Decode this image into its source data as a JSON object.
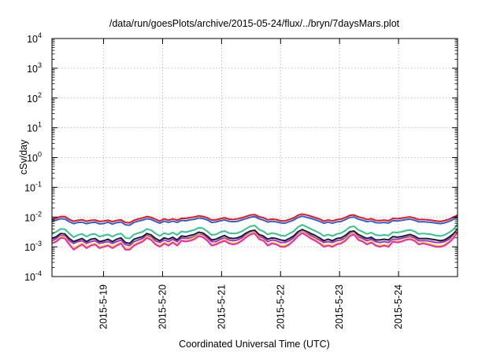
{
  "chart_data": {
    "type": "line",
    "title": "/data/run/goesPlots/archive/2015-05-24/flux/../bryn/7daysMars.plot",
    "xlabel": "Coordinated Universal Time (UTC)",
    "ylabel": "cSv/day",
    "yscale": "log",
    "ylim": [
      0.0001,
      10000
    ],
    "yticks": [
      {
        "value": 0.0001,
        "base": "10",
        "exp": "-4"
      },
      {
        "value": 0.001,
        "base": "10",
        "exp": "-3"
      },
      {
        "value": 0.01,
        "base": "10",
        "exp": "-2"
      },
      {
        "value": 0.1,
        "base": "10",
        "exp": "-1"
      },
      {
        "value": 1,
        "base": "10",
        "exp": "0"
      },
      {
        "value": 10,
        "base": "10",
        "exp": "1"
      },
      {
        "value": 100,
        "base": "10",
        "exp": "2"
      },
      {
        "value": 1000,
        "base": "10",
        "exp": "3"
      },
      {
        "value": 10000,
        "base": "10",
        "exp": "4"
      }
    ],
    "xlim": [
      "2015-05-18 03:00",
      "2015-05-25 00:00"
    ],
    "xticks": [
      "2015-5-19",
      "2015-5-20",
      "2015-5-21",
      "2015-5-22",
      "2015-5-23",
      "2015-5-24"
    ],
    "grid": true,
    "legend": "none",
    "series": [
      {
        "color": "#e8141c",
        "values": [
          0.0085,
          0.0092,
          0.0104,
          0.0103,
          0.0083,
          0.0072,
          0.0078,
          0.0081,
          0.0072,
          0.0078,
          0.0079,
          0.0071,
          0.0074,
          0.0078,
          0.007,
          0.0077,
          0.008,
          0.0066,
          0.0064,
          0.0078,
          0.0086,
          0.0093,
          0.0104,
          0.0097,
          0.0084,
          0.0073,
          0.0087,
          0.0078,
          0.0087,
          0.0078,
          0.009,
          0.009,
          0.0096,
          0.01,
          0.011,
          0.0104,
          0.0094,
          0.0079,
          0.0081,
          0.0088,
          0.0094,
          0.0085,
          0.0083,
          0.0087,
          0.0094,
          0.0105,
          0.0117,
          0.012,
          0.0102,
          0.0095,
          0.0081,
          0.0085,
          0.0082,
          0.0075,
          0.0074,
          0.0083,
          0.0093,
          0.0115,
          0.0126,
          0.0117,
          0.0107,
          0.0095,
          0.0086,
          0.0073,
          0.008,
          0.0074,
          0.0082,
          0.0085,
          0.0097,
          0.0114,
          0.0117,
          0.0101,
          0.0093,
          0.0083,
          0.0088,
          0.0077,
          0.0076,
          0.0079,
          0.0075,
          0.009,
          0.0088,
          0.0091,
          0.0097,
          0.0101,
          0.0092,
          0.0082,
          0.0083,
          0.0081,
          0.0078,
          0.0074,
          0.0071,
          0.0076,
          0.0084,
          0.0098,
          0.0117
        ]
      },
      {
        "color": "#2a5fd8",
        "values": [
          0.0072,
          0.0079,
          0.0088,
          0.0086,
          0.007,
          0.006,
          0.0066,
          0.0067,
          0.006,
          0.0065,
          0.0067,
          0.0059,
          0.0061,
          0.0067,
          0.0058,
          0.0065,
          0.0068,
          0.0055,
          0.0053,
          0.0066,
          0.0073,
          0.0079,
          0.0088,
          0.0083,
          0.0071,
          0.0062,
          0.0073,
          0.0066,
          0.0073,
          0.0066,
          0.0077,
          0.0075,
          0.0081,
          0.0084,
          0.0093,
          0.0089,
          0.008,
          0.0066,
          0.0069,
          0.0075,
          0.008,
          0.0072,
          0.007,
          0.0072,
          0.008,
          0.0089,
          0.0099,
          0.0103,
          0.0087,
          0.0079,
          0.0068,
          0.0072,
          0.0069,
          0.0064,
          0.0062,
          0.007,
          0.0079,
          0.0097,
          0.0107,
          0.0098,
          0.009,
          0.0081,
          0.0072,
          0.0062,
          0.0068,
          0.0062,
          0.0069,
          0.0071,
          0.0082,
          0.0097,
          0.01,
          0.0085,
          0.0078,
          0.007,
          0.0074,
          0.0065,
          0.0064,
          0.0066,
          0.0063,
          0.0076,
          0.0074,
          0.0077,
          0.0082,
          0.0085,
          0.0078,
          0.0069,
          0.007,
          0.0068,
          0.0066,
          0.0063,
          0.006,
          0.0064,
          0.0071,
          0.0083,
          0.0104
        ]
      },
      {
        "color": "#35c48a",
        "values": [
          0.0027,
          0.0032,
          0.004,
          0.0039,
          0.0028,
          0.0021,
          0.0025,
          0.0027,
          0.0022,
          0.0026,
          0.0027,
          0.0022,
          0.0024,
          0.0026,
          0.0022,
          0.0026,
          0.0028,
          0.002,
          0.0019,
          0.0026,
          0.0029,
          0.0032,
          0.004,
          0.0036,
          0.0028,
          0.0023,
          0.0029,
          0.0026,
          0.003,
          0.0025,
          0.0033,
          0.0031,
          0.0034,
          0.0037,
          0.0044,
          0.0042,
          0.0033,
          0.0025,
          0.0026,
          0.0031,
          0.0034,
          0.0029,
          0.0028,
          0.0029,
          0.0033,
          0.0041,
          0.0049,
          0.0052,
          0.0038,
          0.0033,
          0.0026,
          0.0029,
          0.0027,
          0.0024,
          0.0023,
          0.0028,
          0.0033,
          0.0046,
          0.0055,
          0.0047,
          0.004,
          0.0034,
          0.0029,
          0.0023,
          0.0026,
          0.0023,
          0.0027,
          0.0029,
          0.0035,
          0.0046,
          0.0049,
          0.0037,
          0.0032,
          0.0027,
          0.003,
          0.0025,
          0.0024,
          0.0025,
          0.0024,
          0.0031,
          0.003,
          0.0032,
          0.0035,
          0.0037,
          0.0033,
          0.0027,
          0.0028,
          0.0027,
          0.0026,
          0.0024,
          0.0023,
          0.0025,
          0.003,
          0.0038,
          0.0056
        ]
      },
      {
        "color": "#1a1a2e",
        "values": [
          0.0019,
          0.0022,
          0.0028,
          0.0027,
          0.0019,
          0.0015,
          0.0017,
          0.0019,
          0.0015,
          0.0018,
          0.0019,
          0.0015,
          0.0016,
          0.0018,
          0.0015,
          0.0018,
          0.002,
          0.0014,
          0.0013,
          0.0018,
          0.002,
          0.0022,
          0.0028,
          0.0025,
          0.0019,
          0.0016,
          0.002,
          0.0018,
          0.0021,
          0.0017,
          0.0023,
          0.0022,
          0.0024,
          0.0026,
          0.0031,
          0.0029,
          0.0023,
          0.0017,
          0.0018,
          0.0021,
          0.0024,
          0.002,
          0.0019,
          0.002,
          0.0023,
          0.0029,
          0.0034,
          0.0036,
          0.0026,
          0.0023,
          0.0018,
          0.002,
          0.0019,
          0.0017,
          0.0016,
          0.0019,
          0.0023,
          0.0032,
          0.0038,
          0.0033,
          0.0028,
          0.0024,
          0.002,
          0.0016,
          0.0018,
          0.0016,
          0.0019,
          0.002,
          0.0024,
          0.0032,
          0.0034,
          0.0026,
          0.0022,
          0.0019,
          0.0021,
          0.0017,
          0.0017,
          0.0018,
          0.0017,
          0.0022,
          0.0021,
          0.0022,
          0.0024,
          0.0026,
          0.0023,
          0.0019,
          0.0019,
          0.0019,
          0.0018,
          0.0017,
          0.0016,
          0.0017,
          0.0021,
          0.0027,
          0.0039
        ]
      },
      {
        "color": "#9f2fd6",
        "values": [
          0.0016,
          0.0019,
          0.0024,
          0.0023,
          0.0016,
          0.0013,
          0.0015,
          0.0016,
          0.0013,
          0.0015,
          0.0016,
          0.0013,
          0.0014,
          0.0015,
          0.0013,
          0.0015,
          0.0017,
          0.0012,
          0.0011,
          0.0015,
          0.0017,
          0.0019,
          0.0024,
          0.0021,
          0.0016,
          0.0014,
          0.0017,
          0.0015,
          0.0018,
          0.0015,
          0.002,
          0.0019,
          0.002,
          0.0022,
          0.0026,
          0.0025,
          0.002,
          0.0015,
          0.0015,
          0.0018,
          0.002,
          0.0017,
          0.0016,
          0.0017,
          0.002,
          0.0025,
          0.0029,
          0.0031,
          0.0022,
          0.002,
          0.0015,
          0.0017,
          0.0016,
          0.0014,
          0.0014,
          0.0016,
          0.002,
          0.0027,
          0.0032,
          0.0028,
          0.0024,
          0.002,
          0.0017,
          0.0014,
          0.0015,
          0.0014,
          0.0016,
          0.0017,
          0.002,
          0.0027,
          0.0029,
          0.0022,
          0.0019,
          0.0016,
          0.0018,
          0.0015,
          0.0014,
          0.0015,
          0.0014,
          0.0018,
          0.0018,
          0.0019,
          0.0021,
          0.0022,
          0.002,
          0.0016,
          0.0016,
          0.0016,
          0.0015,
          0.0014,
          0.0014,
          0.0015,
          0.0018,
          0.0023,
          0.0033
        ]
      },
      {
        "color": "#ffe600",
        "values": [
          0.0014,
          0.0016,
          0.0022,
          0.0021,
          0.0013,
          0.0009,
          0.0011,
          0.0013,
          0.001,
          0.0012,
          0.0013,
          0.001,
          0.0011,
          0.0012,
          0.001,
          0.0012,
          0.0014,
          0.0009,
          0.0009,
          0.0012,
          0.0014,
          0.0016,
          0.0022,
          0.0019,
          0.0013,
          0.0011,
          0.0014,
          0.0012,
          0.0015,
          0.0012,
          0.0017,
          0.0016,
          0.0018,
          0.002,
          0.0025,
          0.0023,
          0.0017,
          0.0012,
          0.0013,
          0.0015,
          0.0018,
          0.0014,
          0.0013,
          0.0014,
          0.0017,
          0.0023,
          0.0028,
          0.003,
          0.002,
          0.0017,
          0.0012,
          0.0014,
          0.0013,
          0.0011,
          0.0011,
          0.0013,
          0.0017,
          0.0025,
          0.0031,
          0.0026,
          0.0021,
          0.0018,
          0.0014,
          0.0011,
          0.0012,
          0.0011,
          0.0013,
          0.0014,
          0.0018,
          0.0025,
          0.0028,
          0.0019,
          0.0016,
          0.0013,
          0.0015,
          0.0012,
          0.0011,
          0.0012,
          0.0011,
          0.0016,
          0.0015,
          0.0016,
          0.0018,
          0.002,
          0.0017,
          0.0013,
          0.0014,
          0.0013,
          0.0012,
          0.0011,
          0.0011,
          0.0012,
          0.0015,
          0.0021,
          0.0035
        ]
      },
      {
        "color": "#ee22cc",
        "values": [
          0.0013,
          0.0015,
          0.002,
          0.0019,
          0.0012,
          0.0008,
          0.001,
          0.0012,
          0.0009,
          0.0011,
          0.0012,
          0.0009,
          0.001,
          0.0011,
          0.0009,
          0.0011,
          0.0013,
          0.0008,
          0.0008,
          0.0011,
          0.0013,
          0.0015,
          0.002,
          0.0017,
          0.0012,
          0.001,
          0.0013,
          0.0011,
          0.0014,
          0.0011,
          0.0016,
          0.0015,
          0.0016,
          0.0018,
          0.0023,
          0.0021,
          0.0016,
          0.0011,
          0.0012,
          0.0014,
          0.0016,
          0.0013,
          0.0012,
          0.0013,
          0.0016,
          0.0021,
          0.0026,
          0.0028,
          0.0018,
          0.0016,
          0.0011,
          0.0013,
          0.0012,
          0.001,
          0.001,
          0.0012,
          0.0016,
          0.0023,
          0.0029,
          0.0024,
          0.0019,
          0.0016,
          0.0013,
          0.001,
          0.0011,
          0.001,
          0.0012,
          0.0013,
          0.0016,
          0.0023,
          0.0026,
          0.0017,
          0.0015,
          0.0012,
          0.0014,
          0.0011,
          0.001,
          0.0011,
          0.001,
          0.0015,
          0.0014,
          0.0015,
          0.0017,
          0.0018,
          0.0016,
          0.0012,
          0.0013,
          0.0012,
          0.0011,
          0.001,
          0.001,
          0.0011,
          0.0014,
          0.0019,
          0.0032
        ]
      }
    ]
  }
}
